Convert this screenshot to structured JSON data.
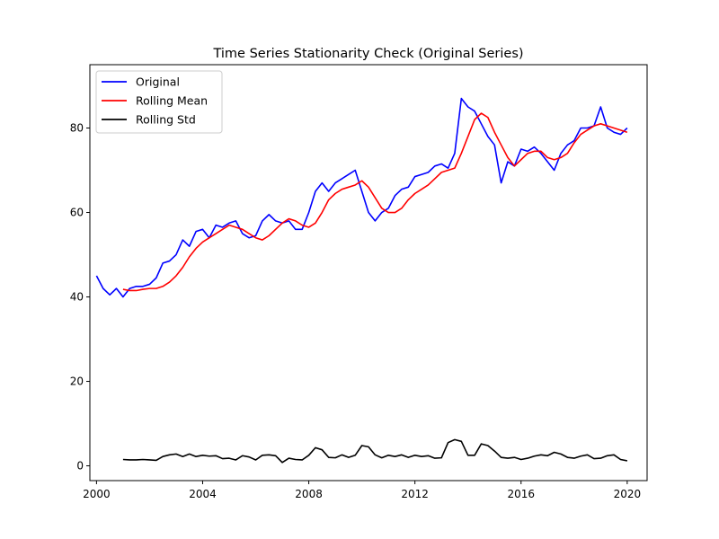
{
  "chart_data": {
    "type": "line",
    "title": "Time Series Stationarity Check (Original Series)",
    "xlabel": "",
    "ylabel": "",
    "xlim": [
      1999.75,
      2020.75
    ],
    "ylim": [
      -3.5,
      95
    ],
    "x_ticks": [
      2000,
      2004,
      2008,
      2012,
      2016,
      2020
    ],
    "x_tick_labels": [
      "2000",
      "2004",
      "2008",
      "2012",
      "2016",
      "2020"
    ],
    "y_ticks": [
      0,
      20,
      40,
      60,
      80
    ],
    "y_tick_labels": [
      "0",
      "20",
      "40",
      "60",
      "80"
    ],
    "grid": false,
    "legend_position": "top-left",
    "series": [
      {
        "name": "Original",
        "color": "#0000ff",
        "x": [
          2000.0,
          2000.25,
          2000.5,
          2000.75,
          2001.0,
          2001.25,
          2001.5,
          2001.75,
          2002.0,
          2002.25,
          2002.5,
          2002.75,
          2003.0,
          2003.25,
          2003.5,
          2003.75,
          2004.0,
          2004.25,
          2004.5,
          2004.75,
          2005.0,
          2005.25,
          2005.5,
          2005.75,
          2006.0,
          2006.25,
          2006.5,
          2006.75,
          2007.0,
          2007.25,
          2007.5,
          2007.75,
          2008.0,
          2008.25,
          2008.5,
          2008.75,
          2009.0,
          2009.25,
          2009.5,
          2009.75,
          2010.0,
          2010.25,
          2010.5,
          2010.75,
          2011.0,
          2011.25,
          2011.5,
          2011.75,
          2012.0,
          2012.25,
          2012.5,
          2012.75,
          2013.0,
          2013.25,
          2013.5,
          2013.75,
          2014.0,
          2014.25,
          2014.5,
          2014.75,
          2015.0,
          2015.25,
          2015.5,
          2015.75,
          2016.0,
          2016.25,
          2016.5,
          2016.75,
          2017.0,
          2017.25,
          2017.5,
          2017.75,
          2018.0,
          2018.25,
          2018.5,
          2018.75,
          2019.0,
          2019.25,
          2019.5,
          2019.75,
          2020.0
        ],
        "values": [
          45,
          42,
          40.5,
          42,
          40,
          42,
          42.5,
          42.5,
          43,
          44.5,
          48,
          48.5,
          50,
          53.5,
          52,
          55.5,
          56,
          54,
          57,
          56.5,
          57.5,
          58,
          55,
          54,
          54.5,
          58,
          59.5,
          58,
          57.5,
          58,
          56,
          56,
          60,
          65,
          67,
          65,
          67,
          68,
          69,
          70,
          65,
          60,
          58,
          60,
          61,
          64,
          65.5,
          66,
          68.5,
          69,
          69.5,
          71,
          71.5,
          70.5,
          74,
          87,
          85,
          84,
          81,
          78,
          76,
          67,
          72,
          71,
          75,
          74.5,
          75.5,
          74,
          72,
          70,
          74,
          76,
          77,
          80,
          80,
          80.5,
          85,
          80,
          79,
          78.5,
          80
        ]
      },
      {
        "name": "Rolling Mean",
        "color": "#ff0000",
        "x": [
          2001.0,
          2001.25,
          2001.5,
          2001.75,
          2002.0,
          2002.25,
          2002.5,
          2002.75,
          2003.0,
          2003.25,
          2003.5,
          2003.75,
          2004.0,
          2004.25,
          2004.5,
          2004.75,
          2005.0,
          2005.25,
          2005.5,
          2005.75,
          2006.0,
          2006.25,
          2006.5,
          2006.75,
          2007.0,
          2007.25,
          2007.5,
          2007.75,
          2008.0,
          2008.25,
          2008.5,
          2008.75,
          2009.0,
          2009.25,
          2009.5,
          2009.75,
          2010.0,
          2010.25,
          2010.5,
          2010.75,
          2011.0,
          2011.25,
          2011.5,
          2011.75,
          2012.0,
          2012.25,
          2012.5,
          2012.75,
          2013.0,
          2013.25,
          2013.5,
          2013.75,
          2014.0,
          2014.25,
          2014.5,
          2014.75,
          2015.0,
          2015.25,
          2015.5,
          2015.75,
          2016.0,
          2016.25,
          2016.5,
          2016.75,
          2017.0,
          2017.25,
          2017.5,
          2017.75,
          2018.0,
          2018.25,
          2018.5,
          2018.75,
          2019.0,
          2019.25,
          2019.5,
          2019.75,
          2020.0
        ],
        "values": [
          41.8,
          41.5,
          41.5,
          41.8,
          42,
          42,
          42.5,
          43.5,
          45,
          47,
          49.5,
          51.5,
          53,
          54,
          55,
          56,
          57,
          56.5,
          56,
          55,
          54,
          53.5,
          54.5,
          56,
          57.5,
          58.5,
          58,
          57,
          56.5,
          57.5,
          60,
          63,
          64.5,
          65.5,
          66,
          66.5,
          67.5,
          66,
          63.5,
          61,
          60,
          60,
          61,
          63,
          64.5,
          65.5,
          66.5,
          68,
          69.5,
          70,
          70.5,
          74,
          78,
          82,
          83.5,
          82.5,
          79,
          76,
          73,
          71,
          72.5,
          74,
          74.5,
          74.5,
          73,
          72.5,
          73,
          74,
          76.5,
          78.5,
          79.5,
          80.5,
          81,
          80.5,
          80,
          79.5,
          79
        ]
      },
      {
        "name": "Rolling Std",
        "color": "#000000",
        "x": [
          2001.0,
          2001.25,
          2001.5,
          2001.75,
          2002.0,
          2002.25,
          2002.5,
          2002.75,
          2003.0,
          2003.25,
          2003.5,
          2003.75,
          2004.0,
          2004.25,
          2004.5,
          2004.75,
          2005.0,
          2005.25,
          2005.5,
          2005.75,
          2006.0,
          2006.25,
          2006.5,
          2006.75,
          2007.0,
          2007.25,
          2007.5,
          2007.75,
          2008.0,
          2008.25,
          2008.5,
          2008.75,
          2009.0,
          2009.25,
          2009.5,
          2009.75,
          2010.0,
          2010.25,
          2010.5,
          2010.75,
          2011.0,
          2011.25,
          2011.5,
          2011.75,
          2012.0,
          2012.25,
          2012.5,
          2012.75,
          2013.0,
          2013.25,
          2013.5,
          2013.75,
          2014.0,
          2014.25,
          2014.5,
          2014.75,
          2015.0,
          2015.25,
          2015.5,
          2015.75,
          2016.0,
          2016.25,
          2016.5,
          2016.75,
          2017.0,
          2017.25,
          2017.5,
          2017.75,
          2018.0,
          2018.25,
          2018.5,
          2018.75,
          2019.0,
          2019.25,
          2019.5,
          2019.75,
          2020.0
        ],
        "values": [
          1.5,
          1.4,
          1.4,
          1.5,
          1.4,
          1.3,
          2.2,
          2.6,
          2.8,
          2.2,
          2.8,
          2.2,
          2.5,
          2.3,
          2.4,
          1.7,
          1.8,
          1.4,
          2.4,
          2.1,
          1.4,
          2.5,
          2.6,
          2.4,
          0.8,
          1.8,
          1.5,
          1.4,
          2.5,
          4.3,
          3.8,
          2.0,
          1.9,
          2.6,
          2.0,
          2.5,
          4.8,
          4.5,
          2.6,
          1.9,
          2.5,
          2.2,
          2.6,
          2.0,
          2.5,
          2.2,
          2.4,
          1.8,
          1.9,
          5.5,
          6.2,
          5.8,
          2.5,
          2.5,
          5.2,
          4.8,
          3.5,
          2.0,
          1.8,
          2.0,
          1.5,
          1.8,
          2.3,
          2.6,
          2.4,
          3.2,
          2.8,
          2.0,
          1.8,
          2.3,
          2.6,
          1.7,
          1.8,
          2.4,
          2.6,
          1.5,
          1.2
        ]
      }
    ]
  }
}
